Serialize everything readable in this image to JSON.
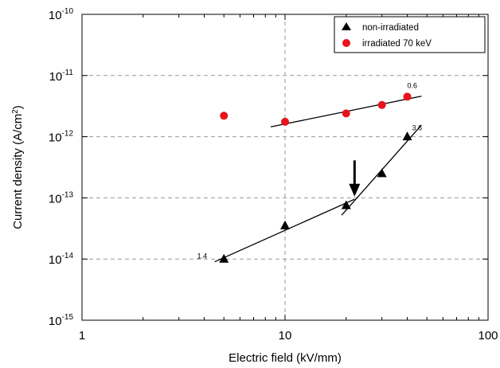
{
  "chart_data": {
    "type": "scatter",
    "xlabel": "Electric field (kV/mm)",
    "ylabel_main": "Current density (A/cm",
    "ylabel_sup": "2",
    "ylabel_tail": ")",
    "xscale": "log",
    "yscale": "log",
    "xlim": [
      1,
      100
    ],
    "ylim": [
      1e-15,
      1e-10
    ],
    "x_ticks": [
      {
        "value": 1,
        "label": "1"
      },
      {
        "value": 10,
        "label": "10"
      },
      {
        "value": 100,
        "label": "100"
      }
    ],
    "y_ticks": [
      {
        "value": 1e-15,
        "base": "10",
        "exp": "-15"
      },
      {
        "value": 1e-14,
        "base": "10",
        "exp": "-14"
      },
      {
        "value": 1e-13,
        "base": "10",
        "exp": "-13"
      },
      {
        "value": 1e-12,
        "base": "10",
        "exp": "-12"
      },
      {
        "value": 1e-11,
        "base": "10",
        "exp": "-11"
      },
      {
        "value": 1e-10,
        "base": "10",
        "exp": "-10"
      }
    ],
    "grid": "dashed",
    "legend_position": "top-right",
    "series": [
      {
        "name": "non-irradiated",
        "marker": "triangle",
        "color": "#000000",
        "points": [
          [
            5,
            1e-14
          ],
          [
            10,
            3.5e-14
          ],
          [
            20,
            7.5e-14
          ],
          [
            30,
            2.5e-13
          ],
          [
            40,
            1e-12
          ]
        ]
      },
      {
        "name": "irradiated 70 keV",
        "marker": "circle",
        "color": "#e8131b",
        "points": [
          [
            5,
            2.2e-12
          ],
          [
            10,
            1.75e-12
          ],
          [
            20,
            2.4e-12
          ],
          [
            30,
            3.3e-12
          ],
          [
            40,
            4.5e-12
          ]
        ]
      }
    ],
    "fit_lines": [
      {
        "label": "1.4",
        "from": [
          4.5,
          9e-15
        ],
        "to": [
          22,
          9.5e-14
        ]
      },
      {
        "label": "3.6",
        "from": [
          19,
          5.2e-14
        ],
        "to": [
          47,
          1.55e-12
        ]
      },
      {
        "label": "0.6",
        "from": [
          8.5,
          1.45e-12
        ],
        "to": [
          47,
          4.6e-12
        ]
      }
    ],
    "annotations": [
      {
        "type": "arrow",
        "x": 22,
        "y_from": 4.1e-13,
        "y_to": 1.05e-13
      }
    ]
  }
}
